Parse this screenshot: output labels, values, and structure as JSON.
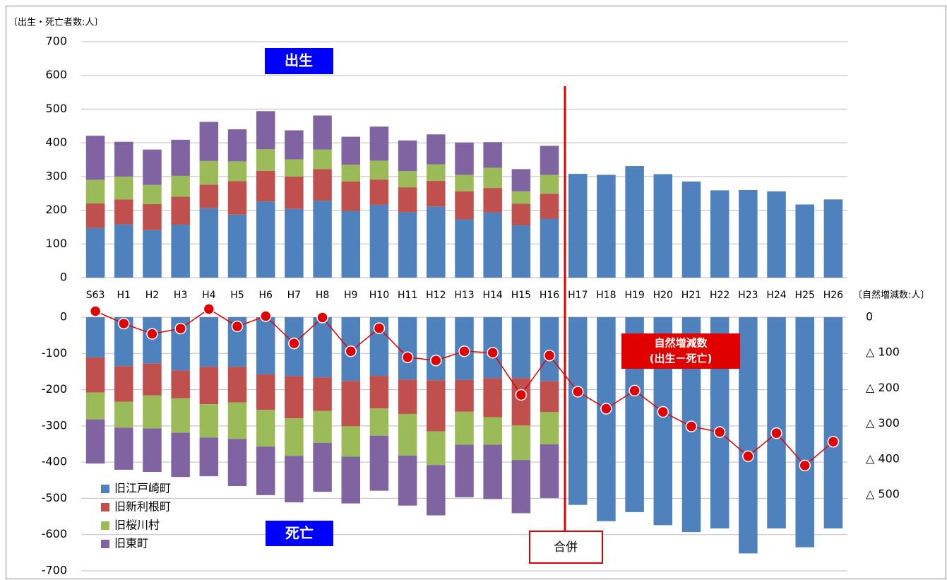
{
  "chart_data": [
    {
      "type": "stacked_bar",
      "y_label": "〔出生・死亡者数:人〕",
      "annotation": "出生",
      "categories": [
        "S63",
        "H1",
        "H2",
        "H3",
        "H4",
        "H5",
        "H6",
        "H7",
        "H8",
        "H9",
        "H10",
        "H11",
        "H12",
        "H13",
        "H14",
        "H15",
        "H16",
        "H17",
        "H18",
        "H19",
        "H20",
        "H21",
        "H22",
        "H23",
        "H24",
        "H25",
        "H26"
      ],
      "series": [
        {
          "name": "旧江戸崎町",
          "color": "#4f81bd",
          "values": [
            147,
            158,
            141,
            157,
            206,
            187,
            226,
            204,
            228,
            198,
            216,
            194,
            211,
            173,
            193,
            155,
            175,
            308,
            305,
            331,
            307,
            285,
            259,
            260,
            256,
            217,
            232
          ]
        },
        {
          "name": "旧新利根町",
          "color": "#c0504d",
          "values": [
            73,
            74,
            77,
            83,
            70,
            99,
            91,
            96,
            94,
            87,
            75,
            74,
            76,
            83,
            73,
            64,
            74,
            null,
            null,
            null,
            null,
            null,
            null,
            null,
            null,
            null,
            null
          ]
        },
        {
          "name": "旧桜川村",
          "color": "#9bbb59",
          "values": [
            70,
            68,
            57,
            62,
            70,
            59,
            64,
            51,
            58,
            50,
            56,
            48,
            49,
            49,
            60,
            37,
            56,
            null,
            null,
            null,
            null,
            null,
            null,
            null,
            null,
            null,
            null
          ]
        },
        {
          "name": "旧東町",
          "color": "#8064a2",
          "values": [
            131,
            103,
            105,
            107,
            116,
            95,
            113,
            86,
            101,
            83,
            101,
            91,
            89,
            96,
            76,
            66,
            86,
            null,
            null,
            null,
            null,
            null,
            null,
            null,
            null,
            null,
            null
          ]
        }
      ],
      "ylim": [
        0,
        700
      ],
      "yticks": [
        0,
        100,
        200,
        300,
        400,
        500,
        600,
        700
      ],
      "grid": true
    },
    {
      "type": "stacked_bar",
      "annotation": "死亡",
      "series": [
        {
          "color": "#4f81bd",
          "values": [
            -111,
            -135,
            -128,
            -147,
            -137,
            -137,
            -158,
            -163,
            -166,
            -176,
            -162,
            -172,
            -174,
            -173,
            -168,
            -168,
            -177,
            -518,
            -563,
            -538,
            -574,
            -593,
            -583,
            -652,
            -583,
            -635,
            -583
          ]
        },
        {
          "color": "#c0504d",
          "values": [
            -97,
            -98,
            -88,
            -77,
            -103,
            -98,
            -98,
            -116,
            -93,
            -125,
            -90,
            -95,
            -141,
            -88,
            -108,
            -131,
            -85,
            null,
            null,
            null,
            null,
            null,
            null,
            null,
            null,
            null,
            null
          ]
        },
        {
          "color": "#9bbb59",
          "values": [
            -74,
            -72,
            -91,
            -95,
            -92,
            -101,
            -101,
            -104,
            -88,
            -84,
            -75,
            -115,
            -93,
            -91,
            -76,
            -95,
            -89,
            null,
            null,
            null,
            null,
            null,
            null,
            null,
            null,
            null,
            null
          ]
        },
        {
          "color": "#8064a2",
          "values": [
            -122,
            -116,
            -120,
            -122,
            -107,
            -130,
            -134,
            -128,
            -135,
            -129,
            -152,
            -138,
            -139,
            -145,
            -150,
            -147,
            -148,
            null,
            null,
            null,
            null,
            null,
            null,
            null,
            null,
            null,
            null
          ]
        }
      ],
      "ylim": [
        -700,
        0
      ],
      "yticks": [
        0,
        -100,
        -200,
        -300,
        -400,
        -500,
        -600,
        -700
      ],
      "grid": true,
      "line": {
        "type": "line",
        "axis": "y2",
        "color": "#e00000",
        "values": [
          17,
          -18,
          -47,
          -32,
          23,
          -26,
          3,
          -74,
          -1,
          -96,
          -31,
          -113,
          -122,
          -96,
          -100,
          -219,
          -108,
          -210,
          -258,
          -207,
          -267,
          -308,
          -324,
          -392,
          -327,
          -418,
          -351
        ]
      },
      "y2_label": "〔自然増減数:人〕",
      "y2lim": [
        -715,
        0
      ],
      "y2ticks": [
        0,
        {
          "value": -100,
          "label": "△ 100"
        },
        {
          "value": -200,
          "label": "△ 200"
        },
        {
          "value": -300,
          "label": "△ 300"
        },
        {
          "value": -400,
          "label": "△ 400"
        },
        {
          "value": -500,
          "label": "△ 500"
        }
      ],
      "line_annotation": [
        "自然増減数",
        "(出生－死亡)"
      ],
      "merger_label": "合併"
    }
  ]
}
